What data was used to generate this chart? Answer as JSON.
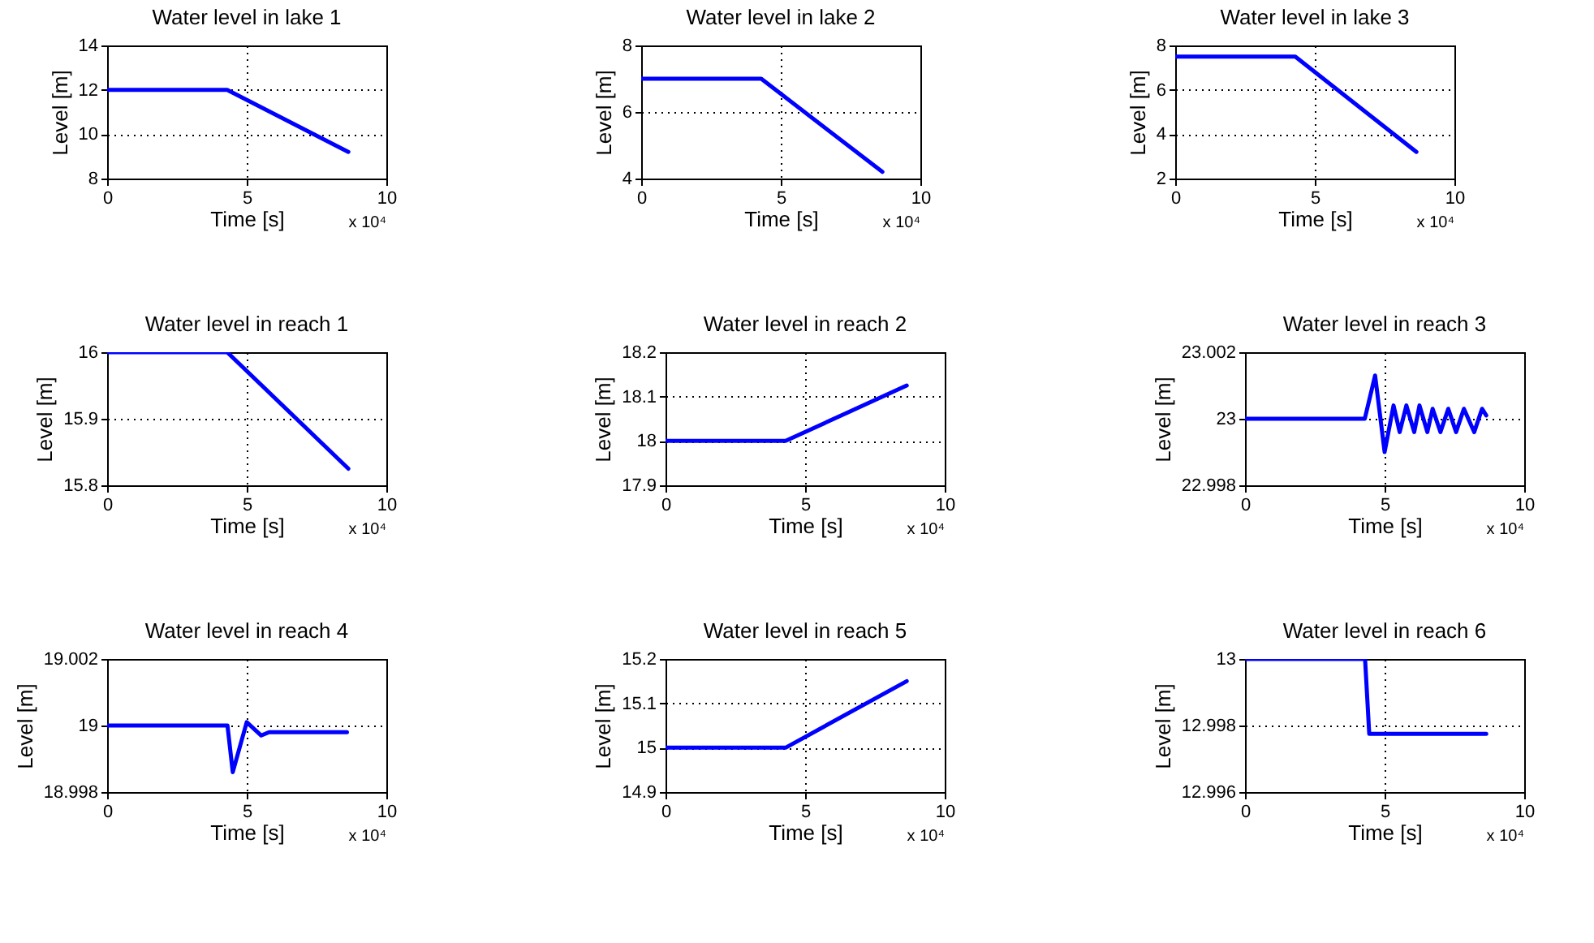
{
  "chart_data": [
    {
      "type": "line",
      "title": "Water level in lake 1",
      "xlabel": "Time [s]",
      "ylabel": "Level [m]",
      "annotations": [
        "x 10⁴"
      ],
      "grid": true,
      "line_style": "solid",
      "marker": "none",
      "xlim": [
        0,
        10
      ],
      "xticks": [
        0,
        5,
        10
      ],
      "ylim": [
        8,
        14
      ],
      "yticks": [
        8,
        10,
        12,
        14
      ],
      "series": [
        {
          "color": "#0000ff",
          "x": [
            0,
            4.3,
            8.64
          ],
          "values": [
            12,
            12,
            9.2
          ]
        }
      ]
    },
    {
      "type": "line",
      "title": "Water level in lake 2",
      "xlabel": "Time [s]",
      "ylabel": "Level [m]",
      "annotations": [
        "x 10⁴"
      ],
      "grid": true,
      "line_style": "solid",
      "marker": "none",
      "xlim": [
        0,
        10
      ],
      "xticks": [
        0,
        5,
        10
      ],
      "ylim": [
        4,
        8
      ],
      "yticks": [
        4,
        6,
        8
      ],
      "series": [
        {
          "color": "#0000ff",
          "x": [
            0,
            4.3,
            8.64
          ],
          "values": [
            7,
            7,
            4.2
          ]
        }
      ]
    },
    {
      "type": "line",
      "title": "Water level in lake 3",
      "xlabel": "Time [s]",
      "ylabel": "Level [m]",
      "annotations": [
        "x 10⁴"
      ],
      "grid": true,
      "line_style": "solid",
      "marker": "none",
      "xlim": [
        0,
        10
      ],
      "xticks": [
        0,
        5,
        10
      ],
      "ylim": [
        2,
        8
      ],
      "yticks": [
        2,
        4,
        6,
        8
      ],
      "series": [
        {
          "color": "#0000ff",
          "x": [
            0,
            4.3,
            8.64
          ],
          "values": [
            7.5,
            7.5,
            3.2
          ]
        }
      ]
    },
    {
      "type": "line",
      "title": "Water level in reach 1",
      "xlabel": "Time [s]",
      "ylabel": "Level [m]",
      "annotations": [
        "x 10⁴"
      ],
      "grid": true,
      "line_style": "solid",
      "marker": "none",
      "xlim": [
        0,
        10
      ],
      "xticks": [
        0,
        5,
        10
      ],
      "ylim": [
        15.8,
        16
      ],
      "yticks": [
        15.8,
        15.9,
        16
      ],
      "series": [
        {
          "color": "#0000ff",
          "x": [
            0,
            4.3,
            8.64
          ],
          "values": [
            16,
            16,
            15.825
          ]
        }
      ]
    },
    {
      "type": "line",
      "title": "Water level in reach 2",
      "xlabel": "Time [s]",
      "ylabel": "Level [m]",
      "annotations": [
        "x 10⁴"
      ],
      "grid": true,
      "line_style": "solid",
      "marker": "none",
      "xlim": [
        0,
        10
      ],
      "xticks": [
        0,
        5,
        10
      ],
      "ylim": [
        17.9,
        18.2
      ],
      "yticks": [
        17.9,
        18,
        18.1,
        18.2
      ],
      "series": [
        {
          "color": "#0000ff",
          "x": [
            0,
            4.3,
            8.64
          ],
          "values": [
            18,
            18,
            18.125
          ]
        }
      ]
    },
    {
      "type": "line",
      "title": "Water level in reach 3",
      "xlabel": "Time [s]",
      "ylabel": "Level [m]",
      "annotations": [
        "x 10⁴"
      ],
      "grid": true,
      "line_style": "solid",
      "marker": "none",
      "xlim": [
        0,
        10
      ],
      "xticks": [
        0,
        5,
        10
      ],
      "ylim": [
        22.998,
        23.002
      ],
      "yticks": [
        22.998,
        23,
        23.002
      ],
      "series": [
        {
          "color": "#0000ff",
          "x": [
            0,
            4.29,
            4.66,
            5.0,
            5.32,
            5.54,
            5.78,
            6.06,
            6.25,
            6.53,
            6.72,
            7.0,
            7.28,
            7.56,
            7.84,
            8.21,
            8.49,
            8.64
          ],
          "values": [
            23,
            23,
            23.0013,
            22.999,
            23.0004,
            22.9996,
            23.0004,
            22.9996,
            23.0004,
            22.9996,
            23.0003,
            22.9996,
            23.0003,
            22.9996,
            23.0003,
            22.9996,
            23.0003,
            23.0001
          ]
        }
      ]
    },
    {
      "type": "line",
      "title": "Water level in reach 4",
      "xlabel": "Time [s]",
      "ylabel": "Level [m]",
      "annotations": [
        "x 10⁴"
      ],
      "grid": true,
      "line_style": "solid",
      "marker": "none",
      "xlim": [
        0,
        10
      ],
      "xticks": [
        0,
        5,
        10
      ],
      "ylim": [
        18.998,
        19.002
      ],
      "yticks": [
        18.998,
        19,
        19.002
      ],
      "series": [
        {
          "color": "#0000ff",
          "x": [
            0,
            4.31,
            4.5,
            5.0,
            5.52,
            5.8,
            6.2,
            8.59
          ],
          "values": [
            19,
            19,
            18.9986,
            19.0001,
            18.9997,
            18.9998,
            18.9998,
            18.9998
          ]
        }
      ]
    },
    {
      "type": "line",
      "title": "Water level in reach 5",
      "xlabel": "Time [s]",
      "ylabel": "Level [m]",
      "annotations": [
        "x 10⁴"
      ],
      "grid": true,
      "line_style": "solid",
      "marker": "none",
      "xlim": [
        0,
        10
      ],
      "xticks": [
        0,
        5,
        10
      ],
      "ylim": [
        14.9,
        15.2
      ],
      "yticks": [
        14.9,
        15,
        15.1,
        15.2
      ],
      "series": [
        {
          "color": "#0000ff",
          "x": [
            0,
            4.3,
            8.64
          ],
          "values": [
            15,
            15,
            15.15
          ]
        }
      ]
    },
    {
      "type": "line",
      "title": "Water level in reach 6",
      "xlabel": "Time [s]",
      "ylabel": "Level [m]",
      "annotations": [
        "x 10⁴"
      ],
      "grid": true,
      "line_style": "solid",
      "marker": "none",
      "xlim": [
        0,
        10
      ],
      "xticks": [
        0,
        5,
        10
      ],
      "ylim": [
        12.996,
        13
      ],
      "yticks": [
        12.996,
        12.998,
        13
      ],
      "series": [
        {
          "color": "#0000ff",
          "x": [
            0,
            4.3,
            4.45,
            8.64
          ],
          "values": [
            13,
            13,
            12.99775,
            12.99775
          ]
        }
      ]
    }
  ]
}
